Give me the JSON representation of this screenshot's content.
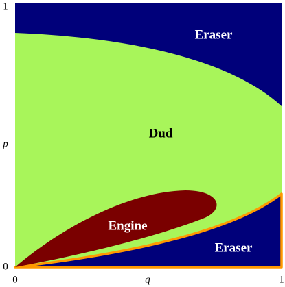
{
  "chart_data": {
    "type": "region",
    "x_label": "q",
    "y_label": "p",
    "xlim": [
      0,
      1
    ],
    "ylim": [
      0,
      1
    ],
    "xticks": [
      0,
      1
    ],
    "yticks": [
      0,
      1
    ],
    "regions": [
      {
        "name": "Eraser",
        "color": "#00007a",
        "text_color": "#ffffff"
      },
      {
        "name": "Dud",
        "color": "#a8f55a",
        "text_color": "#000000"
      },
      {
        "name": "Engine",
        "color": "#7a0000",
        "text_color": "#ffffff"
      },
      {
        "name": "Eraser",
        "color": "#00007a",
        "text_color": "#ffffff",
        "outline": "#ff9900"
      }
    ]
  }
}
